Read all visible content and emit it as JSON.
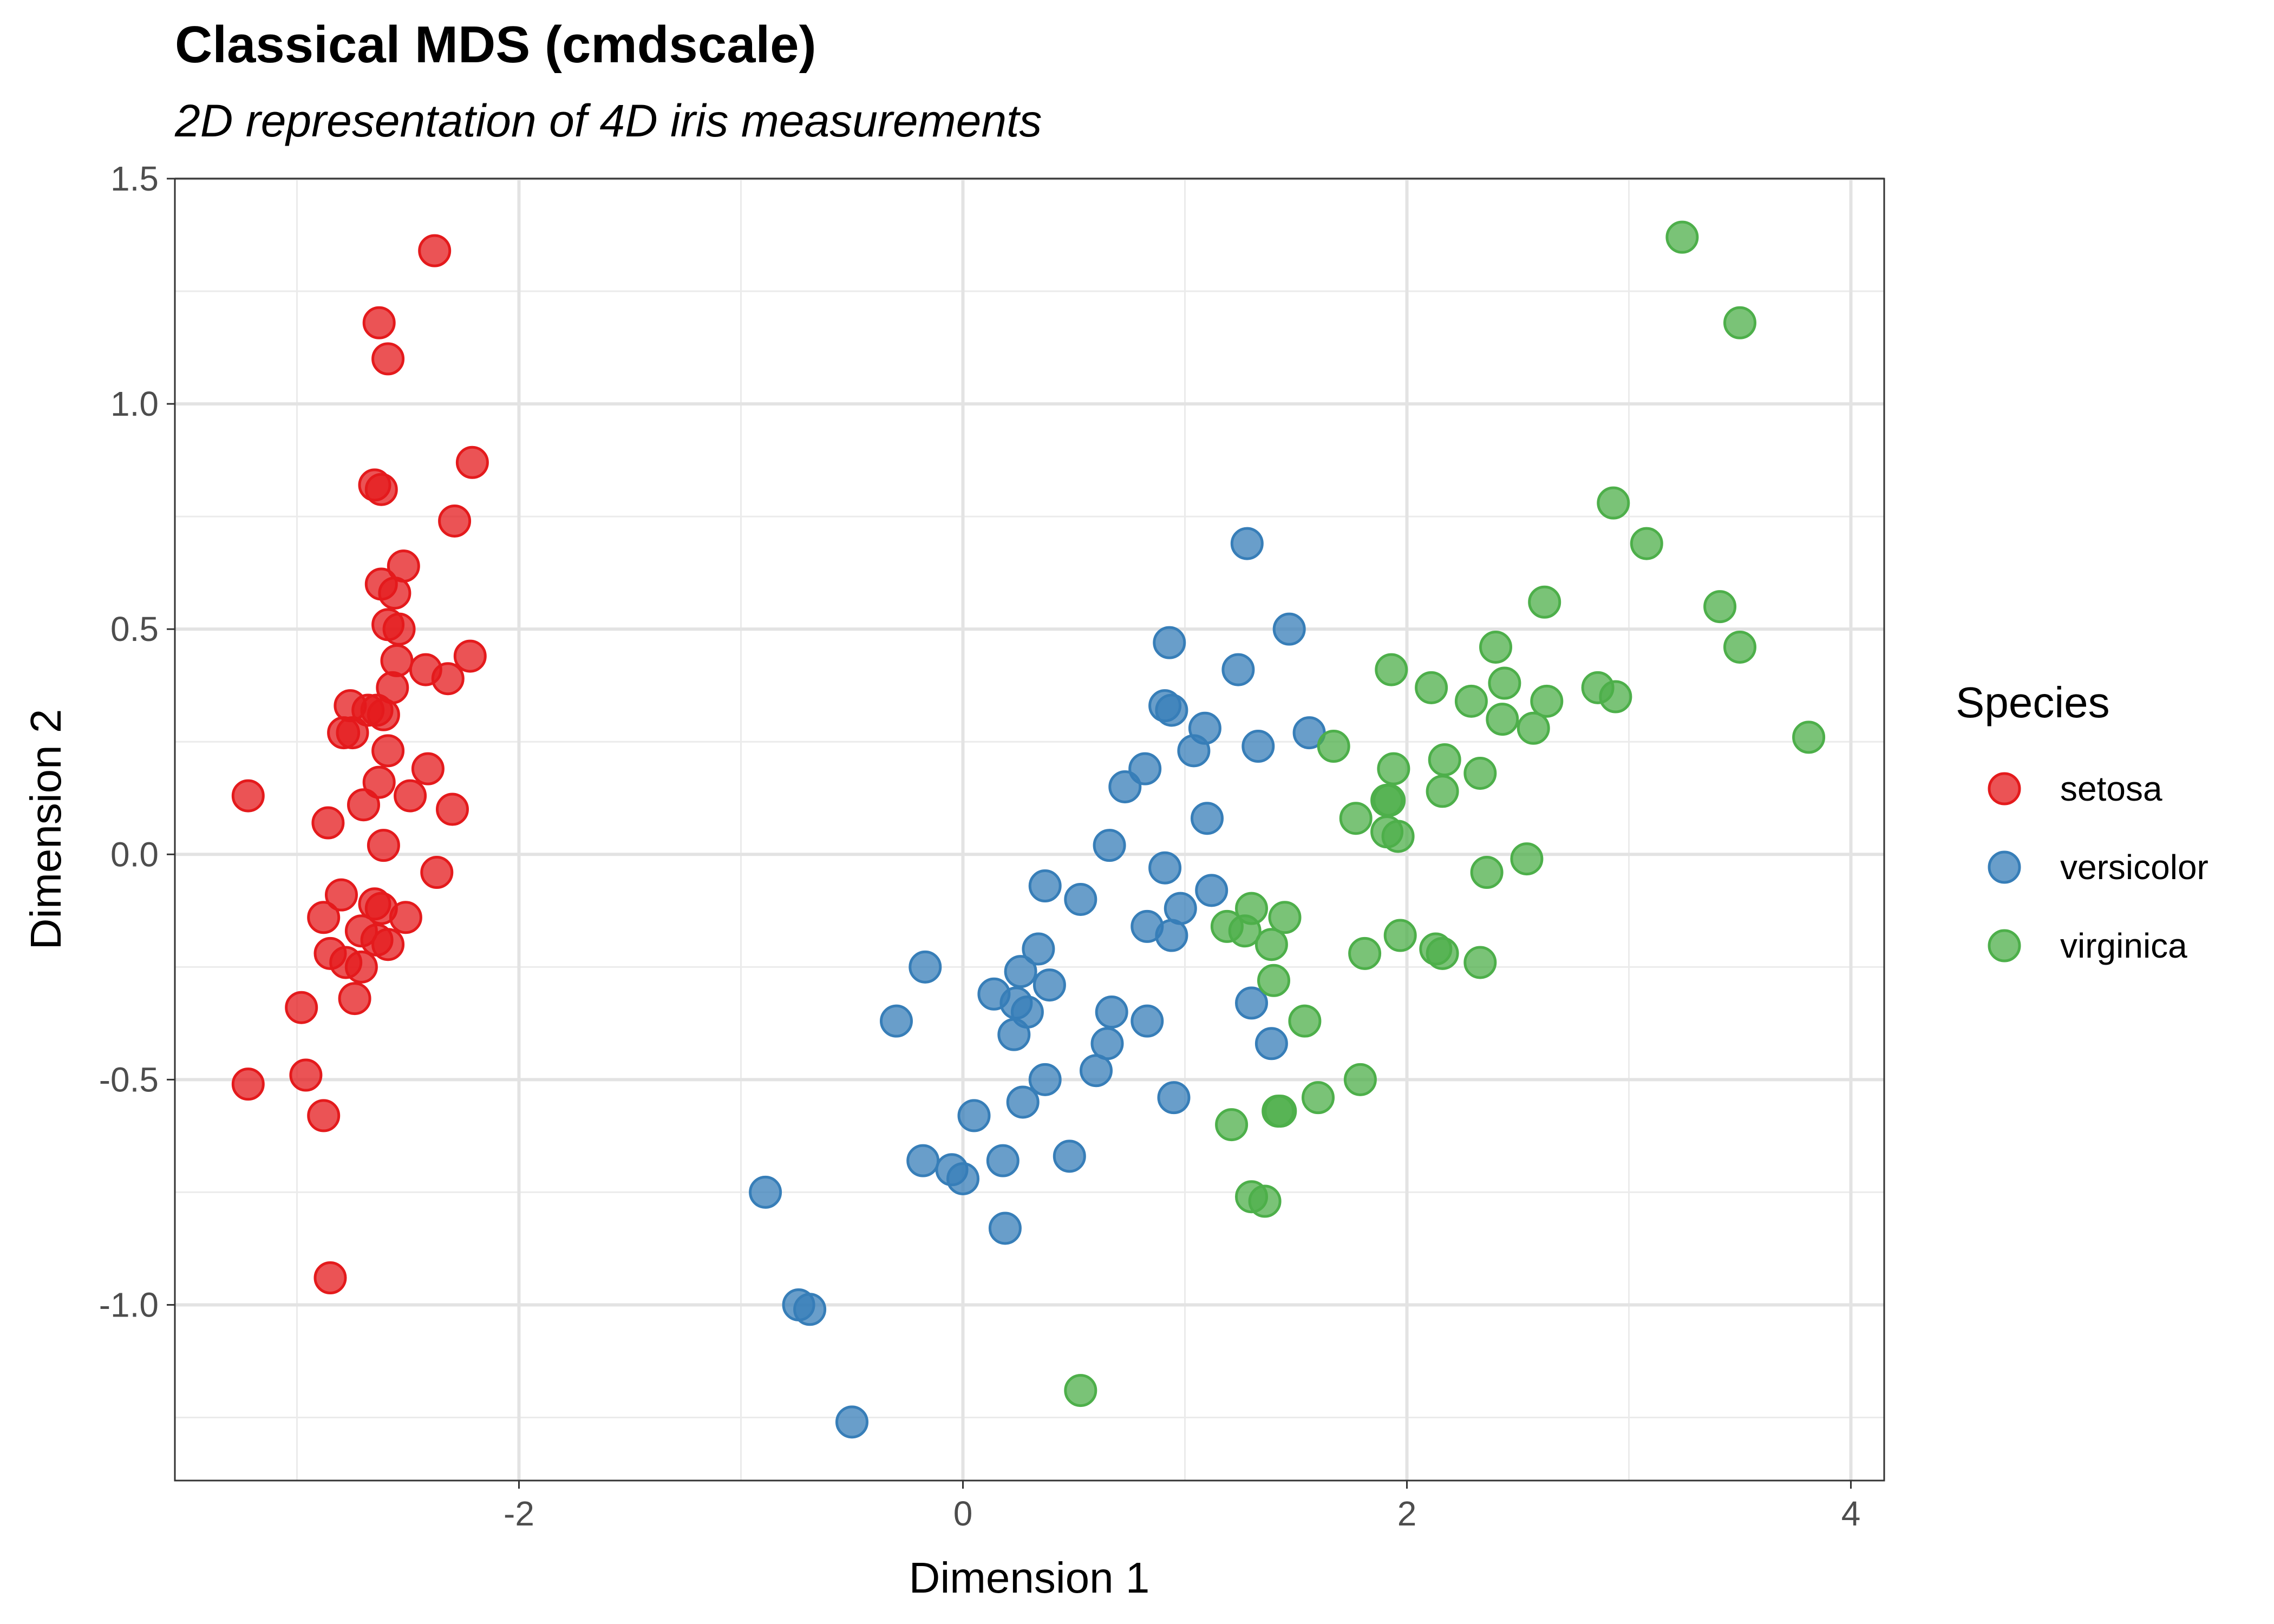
{
  "chart_data": {
    "type": "scatter",
    "title": "Classical MDS (cmdscale)",
    "subtitle": "2D representation of 4D iris measurements",
    "xlabel": "Dimension 1",
    "ylabel": "Dimension 2",
    "xlim": [
      -3.55,
      4.15
    ],
    "ylim": [
      -1.39,
      1.5
    ],
    "x_ticks": [
      -2,
      0,
      2,
      4
    ],
    "x_tick_labels": [
      "-2",
      "0",
      "2",
      "4"
    ],
    "y_ticks": [
      -1.0,
      -0.5,
      0.0,
      0.5,
      1.0,
      1.5
    ],
    "y_tick_labels": [
      "-1.0",
      "-0.5",
      "0.0",
      "0.5",
      "1.0",
      "1.5"
    ],
    "grid": true,
    "legend": {
      "title": "Species",
      "position": "right"
    },
    "series": [
      {
        "name": "setosa",
        "color": "#E41A1C",
        "points": [
          [
            -2.38,
            1.34
          ],
          [
            -2.63,
            1.18
          ],
          [
            -2.59,
            1.1
          ],
          [
            -2.65,
            0.82
          ],
          [
            -2.62,
            0.81
          ],
          [
            -2.21,
            0.87
          ],
          [
            -2.29,
            0.74
          ],
          [
            -2.52,
            0.64
          ],
          [
            -2.62,
            0.6
          ],
          [
            -2.56,
            0.58
          ],
          [
            -2.59,
            0.51
          ],
          [
            -2.54,
            0.5
          ],
          [
            -2.55,
            0.43
          ],
          [
            -2.22,
            0.44
          ],
          [
            -2.42,
            0.41
          ],
          [
            -2.32,
            0.39
          ],
          [
            -2.57,
            0.37
          ],
          [
            -2.76,
            0.33
          ],
          [
            -2.68,
            0.32
          ],
          [
            -2.64,
            0.32
          ],
          [
            -2.61,
            0.31
          ],
          [
            -2.79,
            0.27
          ],
          [
            -2.75,
            0.27
          ],
          [
            -2.59,
            0.23
          ],
          [
            -2.41,
            0.19
          ],
          [
            -2.63,
            0.16
          ],
          [
            -2.49,
            0.13
          ],
          [
            -3.22,
            0.13
          ],
          [
            -2.7,
            0.11
          ],
          [
            -2.3,
            0.1
          ],
          [
            -2.86,
            0.07
          ],
          [
            -2.61,
            0.02
          ],
          [
            -2.37,
            -0.04
          ],
          [
            -2.8,
            -0.09
          ],
          [
            -2.65,
            -0.11
          ],
          [
            -2.62,
            -0.12
          ],
          [
            -2.51,
            -0.14
          ],
          [
            -2.88,
            -0.14
          ],
          [
            -2.71,
            -0.17
          ],
          [
            -2.64,
            -0.19
          ],
          [
            -2.59,
            -0.2
          ],
          [
            -2.85,
            -0.22
          ],
          [
            -2.78,
            -0.24
          ],
          [
            -2.71,
            -0.25
          ],
          [
            -2.74,
            -0.32
          ],
          [
            -2.98,
            -0.34
          ],
          [
            -2.96,
            -0.49
          ],
          [
            -3.22,
            -0.51
          ],
          [
            -2.88,
            -0.58
          ],
          [
            -2.85,
            -0.94
          ]
        ]
      },
      {
        "name": "versicolor",
        "color": "#377EB8",
        "points": [
          [
            1.28,
            0.69
          ],
          [
            1.47,
            0.5
          ],
          [
            0.93,
            0.47
          ],
          [
            1.24,
            0.41
          ],
          [
            0.91,
            0.33
          ],
          [
            0.94,
            0.32
          ],
          [
            1.09,
            0.28
          ],
          [
            1.56,
            0.27
          ],
          [
            1.33,
            0.24
          ],
          [
            1.04,
            0.23
          ],
          [
            0.82,
            0.19
          ],
          [
            0.73,
            0.15
          ],
          [
            1.1,
            0.08
          ],
          [
            0.66,
            0.02
          ],
          [
            0.91,
            -0.03
          ],
          [
            0.37,
            -0.07
          ],
          [
            1.12,
            -0.08
          ],
          [
            0.53,
            -0.1
          ],
          [
            0.98,
            -0.12
          ],
          [
            0.83,
            -0.16
          ],
          [
            0.94,
            -0.18
          ],
          [
            0.34,
            -0.21
          ],
          [
            -0.17,
            -0.25
          ],
          [
            0.26,
            -0.26
          ],
          [
            0.39,
            -0.29
          ],
          [
            0.14,
            -0.31
          ],
          [
            0.24,
            -0.33
          ],
          [
            0.29,
            -0.35
          ],
          [
            0.67,
            -0.35
          ],
          [
            -0.3,
            -0.37
          ],
          [
            0.83,
            -0.37
          ],
          [
            1.3,
            -0.33
          ],
          [
            0.23,
            -0.4
          ],
          [
            0.65,
            -0.42
          ],
          [
            1.39,
            -0.42
          ],
          [
            0.6,
            -0.48
          ],
          [
            0.37,
            -0.5
          ],
          [
            0.27,
            -0.55
          ],
          [
            0.95,
            -0.54
          ],
          [
            0.05,
            -0.58
          ],
          [
            0.48,
            -0.67
          ],
          [
            -0.18,
            -0.68
          ],
          [
            0.18,
            -0.68
          ],
          [
            -0.05,
            -0.7
          ],
          [
            0.0,
            -0.72
          ],
          [
            -0.89,
            -0.75
          ],
          [
            0.19,
            -0.83
          ],
          [
            -0.74,
            -1.0
          ],
          [
            -0.69,
            -1.01
          ],
          [
            -0.5,
            -1.26
          ]
        ]
      },
      {
        "name": "virginica",
        "color": "#4DAF4A",
        "points": [
          [
            3.24,
            1.37
          ],
          [
            3.5,
            1.18
          ],
          [
            2.93,
            0.78
          ],
          [
            3.08,
            0.69
          ],
          [
            2.62,
            0.56
          ],
          [
            3.41,
            0.55
          ],
          [
            3.5,
            0.46
          ],
          [
            2.4,
            0.46
          ],
          [
            1.93,
            0.41
          ],
          [
            2.11,
            0.37
          ],
          [
            2.44,
            0.38
          ],
          [
            2.86,
            0.37
          ],
          [
            2.94,
            0.35
          ],
          [
            2.29,
            0.34
          ],
          [
            2.63,
            0.34
          ],
          [
            2.43,
            0.3
          ],
          [
            2.57,
            0.28
          ],
          [
            3.81,
            0.26
          ],
          [
            1.67,
            0.24
          ],
          [
            2.17,
            0.21
          ],
          [
            1.94,
            0.19
          ],
          [
            2.33,
            0.18
          ],
          [
            2.16,
            0.14
          ],
          [
            1.91,
            0.12
          ],
          [
            1.92,
            0.12
          ],
          [
            1.77,
            0.08
          ],
          [
            1.91,
            0.05
          ],
          [
            1.96,
            0.04
          ],
          [
            2.54,
            -0.01
          ],
          [
            2.36,
            -0.04
          ],
          [
            1.3,
            -0.12
          ],
          [
            1.45,
            -0.14
          ],
          [
            1.19,
            -0.16
          ],
          [
            1.27,
            -0.17
          ],
          [
            1.97,
            -0.18
          ],
          [
            1.39,
            -0.2
          ],
          [
            2.13,
            -0.21
          ],
          [
            2.16,
            -0.22
          ],
          [
            1.81,
            -0.22
          ],
          [
            2.33,
            -0.24
          ],
          [
            1.4,
            -0.28
          ],
          [
            1.54,
            -0.37
          ],
          [
            1.79,
            -0.5
          ],
          [
            1.6,
            -0.54
          ],
          [
            1.42,
            -0.57
          ],
          [
            1.43,
            -0.57
          ],
          [
            1.21,
            -0.6
          ],
          [
            1.3,
            -0.76
          ],
          [
            1.36,
            -0.77
          ],
          [
            0.53,
            -1.19
          ]
        ]
      }
    ]
  }
}
